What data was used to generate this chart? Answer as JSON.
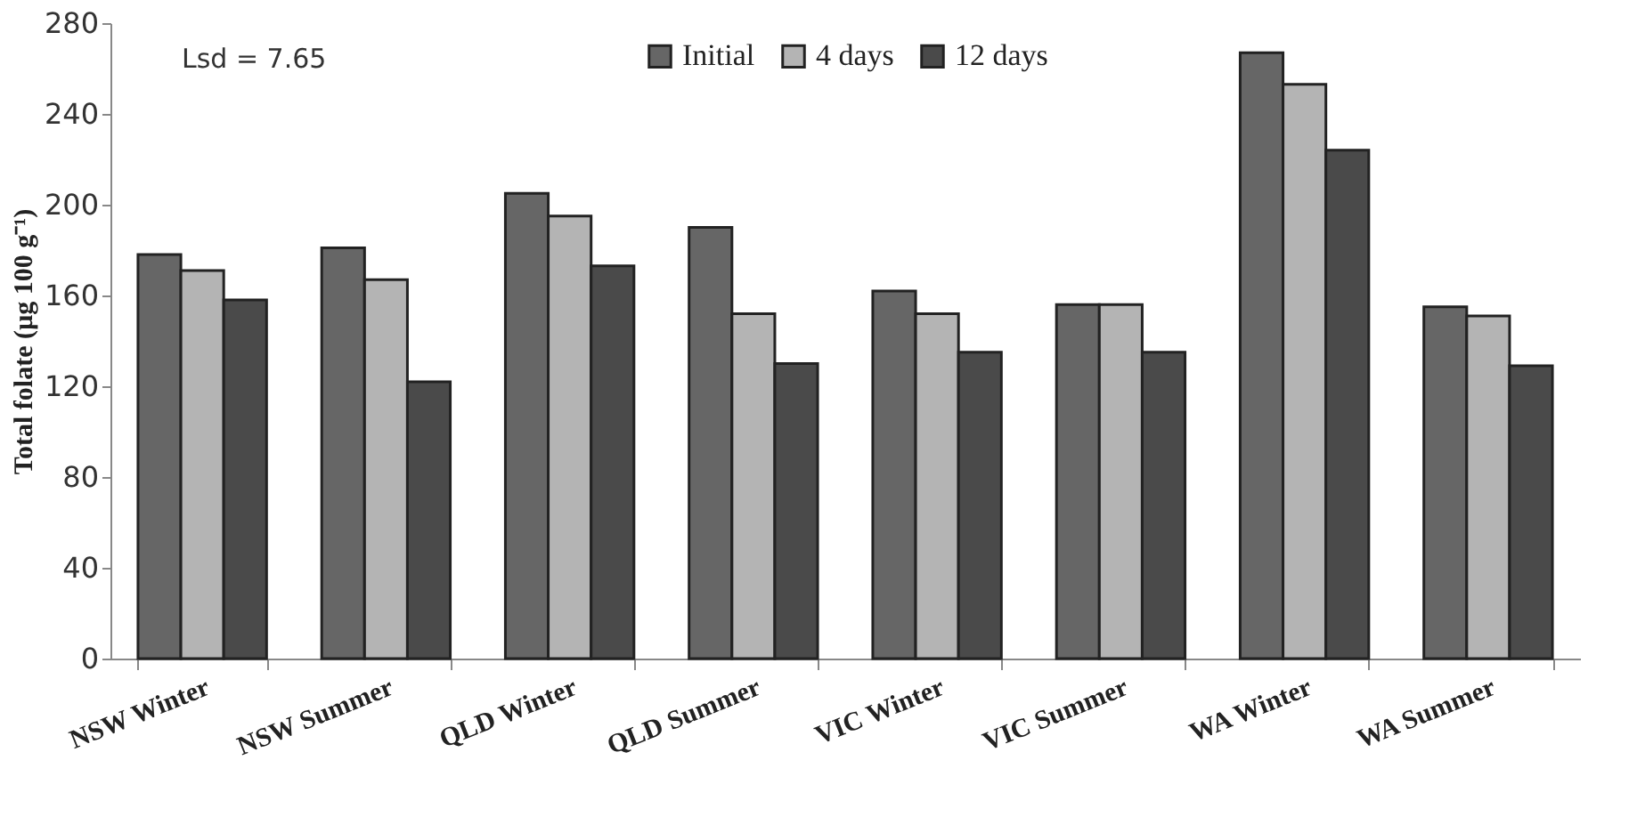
{
  "chart_data": {
    "type": "bar",
    "ylabel": "Total folate (µg 100 g⁻¹)",
    "categories": [
      "NSW Winter",
      "NSW Summer",
      "QLD Winter",
      "QLD Summer",
      "VIC Winter",
      "VIC Summer",
      "WA Winter",
      "WA Summer"
    ],
    "series": [
      {
        "name": "Initial",
        "color": "#666666",
        "values": [
          178,
          181,
          205,
          190,
          162,
          156,
          267,
          155
        ]
      },
      {
        "name": "4 days",
        "color": "#b4b4b4",
        "values": [
          171,
          167,
          195,
          152,
          152,
          156,
          253,
          151
        ]
      },
      {
        "name": "12 days",
        "color": "#4a4a4a",
        "values": [
          158,
          122,
          173,
          130,
          135,
          135,
          224,
          129
        ]
      }
    ],
    "ylim": [
      0,
      280
    ],
    "yticks": [
      0,
      40,
      80,
      120,
      160,
      200,
      240,
      280
    ],
    "annotations": [
      "Lsd = 7.65"
    ],
    "legend": "top",
    "grid": false
  }
}
